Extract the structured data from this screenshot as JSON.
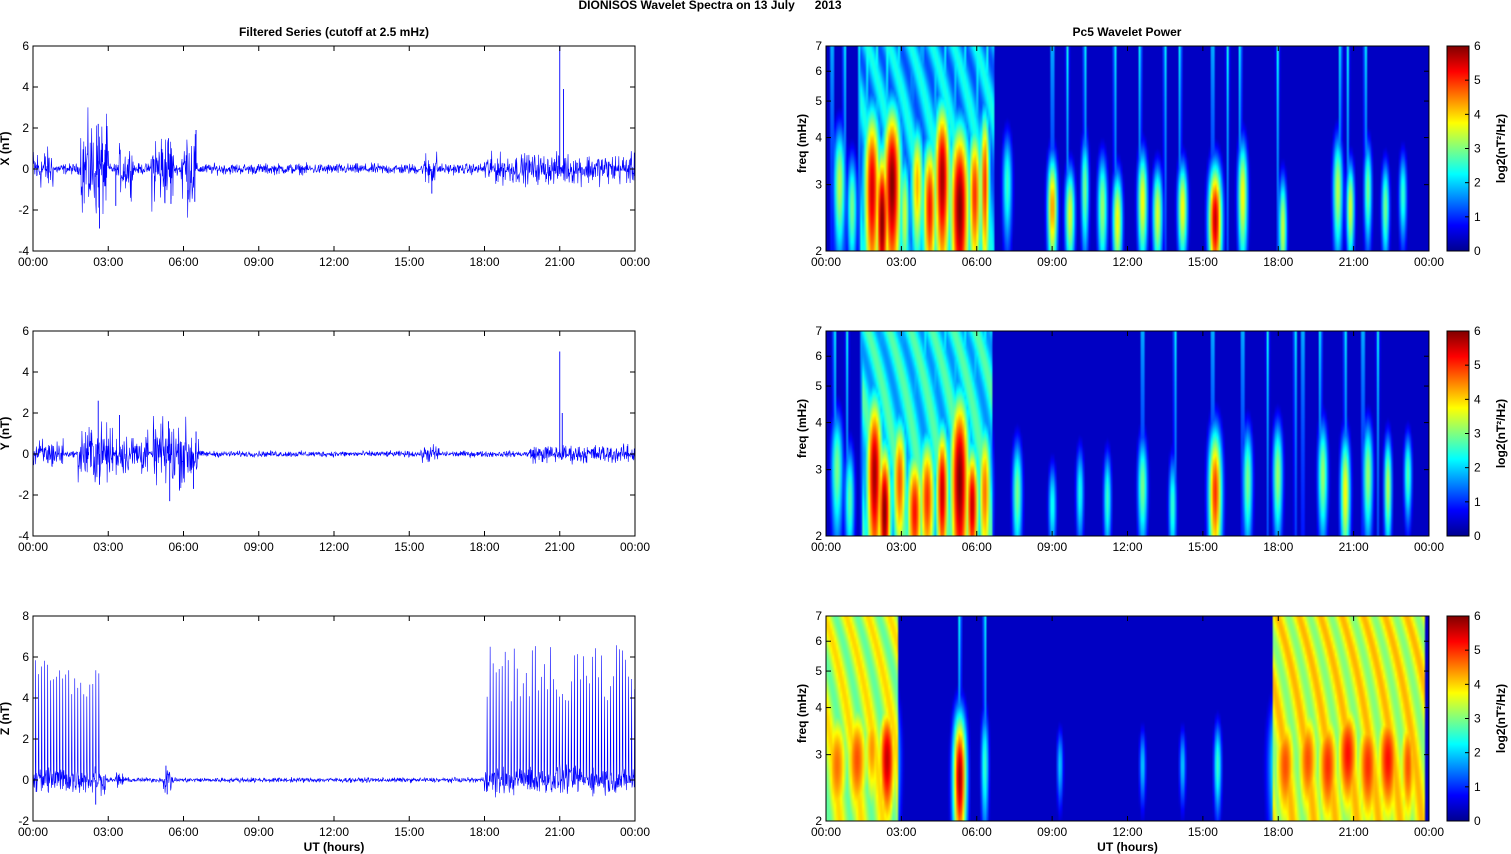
{
  "figure": {
    "title": "DIONISOS Wavelet Spectra on 13 July      2013",
    "left_title": "Filtered Series (cutoff at 2.5 mHz)",
    "right_title": "Pc5 Wavelet Power",
    "xlabel": "UT (hours)",
    "colorbar_label": "log2(nT²/Hz)",
    "colorbar_ticks": [
      "0",
      "1",
      "2",
      "3",
      "4",
      "5",
      "6"
    ]
  },
  "chart_data": [
    {
      "type": "line",
      "title": "Filtered Series (cutoff at 2.5 mHz)",
      "ylabel": "X (nT)",
      "xlabel": "",
      "x_range_hours": [
        0,
        24
      ],
      "ylim": [
        -4,
        6
      ],
      "ytick_labels": [
        "-4",
        "-2",
        "0",
        "2",
        "4",
        "6"
      ],
      "xtick_labels": [
        "00:00",
        "03:00",
        "06:00",
        "09:00",
        "12:00",
        "15:00",
        "18:00",
        "21:00",
        "00:00"
      ],
      "color": "#0000ff",
      "baseline_noise_nT": 0.18,
      "bursts": [
        {
          "start_h": 0.0,
          "end_h": 0.8,
          "amp": 0.7
        },
        {
          "start_h": 1.9,
          "end_h": 3.0,
          "amp": 1.6
        },
        {
          "start_h": 3.4,
          "end_h": 4.0,
          "amp": 0.8
        },
        {
          "start_h": 4.7,
          "end_h": 5.6,
          "amp": 1.3
        },
        {
          "start_h": 5.9,
          "end_h": 6.5,
          "amp": 1.4
        },
        {
          "start_h": 15.6,
          "end_h": 16.1,
          "amp": 0.6
        },
        {
          "start_h": 18.0,
          "end_h": 24.0,
          "amp": 0.5
        }
      ],
      "spikes": [
        {
          "x": 2.6,
          "y": 2.2
        },
        {
          "x": 2.65,
          "y": -2.9
        },
        {
          "x": 3.3,
          "y": -1.8
        },
        {
          "x": 5.4,
          "y": 1.5
        },
        {
          "x": 5.5,
          "y": -1.7
        },
        {
          "x": 6.5,
          "y": 1.9
        },
        {
          "x": 6.45,
          "y": -1.6
        },
        {
          "x": 15.9,
          "y": -1.2
        },
        {
          "x": 21.0,
          "y": 6.0
        },
        {
          "x": 21.15,
          "y": 3.9
        }
      ]
    },
    {
      "type": "line",
      "title": "",
      "ylabel": "Y (nT)",
      "xlabel": "",
      "x_range_hours": [
        0,
        24
      ],
      "ylim": [
        -4,
        6
      ],
      "ytick_labels": [
        "-4",
        "-2",
        "0",
        "2",
        "4",
        "6"
      ],
      "xtick_labels": [
        "00:00",
        "03:00",
        "06:00",
        "09:00",
        "12:00",
        "15:00",
        "18:00",
        "21:00",
        "00:00"
      ],
      "color": "#0000ff",
      "baseline_noise_nT": 0.1,
      "bursts": [
        {
          "start_h": 0.0,
          "end_h": 1.2,
          "amp": 0.5
        },
        {
          "start_h": 1.8,
          "end_h": 3.2,
          "amp": 1.0
        },
        {
          "start_h": 3.3,
          "end_h": 4.6,
          "amp": 0.7
        },
        {
          "start_h": 4.8,
          "end_h": 6.6,
          "amp": 1.1
        },
        {
          "start_h": 15.5,
          "end_h": 16.2,
          "amp": 0.3
        },
        {
          "start_h": 19.8,
          "end_h": 20.8,
          "amp": 0.3
        },
        {
          "start_h": 20.8,
          "end_h": 24.0,
          "amp": 0.3
        }
      ],
      "spikes": [
        {
          "x": 2.6,
          "y": 2.6
        },
        {
          "x": 2.65,
          "y": -1.5
        },
        {
          "x": 3.45,
          "y": 1.9
        },
        {
          "x": 5.4,
          "y": 1.6
        },
        {
          "x": 5.45,
          "y": -2.3
        },
        {
          "x": 6.4,
          "y": -1.7
        },
        {
          "x": 6.5,
          "y": 1.1
        },
        {
          "x": 21.0,
          "y": 5.0
        },
        {
          "x": 21.1,
          "y": 2.0
        }
      ]
    },
    {
      "type": "line",
      "title": "",
      "ylabel": "Z (nT)",
      "xlabel": "UT (hours)",
      "x_range_hours": [
        0,
        24
      ],
      "ylim": [
        -2,
        8
      ],
      "ytick_labels": [
        "-2",
        "0",
        "2",
        "4",
        "6",
        "8"
      ],
      "xtick_labels": [
        "00:00",
        "03:00",
        "06:00",
        "09:00",
        "12:00",
        "15:00",
        "18:00",
        "21:00",
        "00:00"
      ],
      "color": "#0000ff",
      "baseline_noise_nT": 0.08,
      "periodic_spikes": [
        {
          "start_h": 0.1,
          "end_h": 2.7,
          "period_h": 0.12,
          "amp_min": 4.0,
          "amp_max": 6.0
        },
        {
          "start_h": 18.1,
          "end_h": 24.0,
          "period_h": 0.12,
          "amp_min": 3.8,
          "amp_max": 6.6
        }
      ],
      "bursts": [
        {
          "start_h": 0.0,
          "end_h": 2.9,
          "amp": 0.45
        },
        {
          "start_h": 3.3,
          "end_h": 3.6,
          "amp": 0.3
        },
        {
          "start_h": 5.2,
          "end_h": 5.6,
          "amp": 0.5
        },
        {
          "start_h": 18.0,
          "end_h": 24.0,
          "amp": 0.45
        }
      ],
      "spikes": [
        {
          "x": 2.5,
          "y": -1.2
        },
        {
          "x": 5.3,
          "y": 0.7
        },
        {
          "x": 5.35,
          "y": -0.7
        }
      ]
    },
    {
      "type": "heatmap",
      "title": "Pc5 Wavelet Power",
      "ylabel": "freq (mHz)",
      "xlabel": "",
      "x_range_hours": [
        0,
        24
      ],
      "y_scale": "log",
      "ylim_mHz": [
        2,
        7
      ],
      "ytick_labels": [
        "2",
        "3",
        "4",
        "5",
        "6",
        "7"
      ],
      "xtick_labels": [
        "00:00",
        "03:00",
        "06:00",
        "09:00",
        "12:00",
        "15:00",
        "18:00",
        "21:00",
        "00:00"
      ],
      "zlim": [
        0,
        6
      ],
      "colormap": "jet",
      "bands": [
        {
          "start_h": 1.3,
          "end_h": 6.7,
          "level": 1.8
        }
      ],
      "blobs": [
        {
          "t": 0.5,
          "f": 3.0,
          "w": 0.18,
          "h": 0.9,
          "p": 3.4
        },
        {
          "t": 1.0,
          "f": 2.6,
          "w": 0.15,
          "h": 0.7,
          "p": 3.0
        },
        {
          "t": 1.8,
          "f": 2.9,
          "w": 0.25,
          "h": 1.4,
          "p": 5.5
        },
        {
          "t": 2.2,
          "f": 2.4,
          "w": 0.2,
          "h": 1.0,
          "p": 6.0
        },
        {
          "t": 2.6,
          "f": 3.0,
          "w": 0.28,
          "h": 1.4,
          "p": 6.0
        },
        {
          "t": 3.1,
          "f": 2.5,
          "w": 0.15,
          "h": 0.8,
          "p": 3.5
        },
        {
          "t": 3.6,
          "f": 3.0,
          "w": 0.2,
          "h": 1.0,
          "p": 4.2
        },
        {
          "t": 4.1,
          "f": 2.6,
          "w": 0.22,
          "h": 1.0,
          "p": 5.2
        },
        {
          "t": 4.6,
          "f": 3.1,
          "w": 0.25,
          "h": 1.4,
          "p": 5.8
        },
        {
          "t": 5.3,
          "f": 2.6,
          "w": 0.3,
          "h": 1.3,
          "p": 6.0
        },
        {
          "t": 5.9,
          "f": 2.8,
          "w": 0.2,
          "h": 1.1,
          "p": 5.0
        },
        {
          "t": 6.3,
          "f": 3.0,
          "w": 0.15,
          "h": 1.3,
          "p": 5.0
        },
        {
          "t": 7.2,
          "f": 3.0,
          "w": 0.15,
          "h": 0.8,
          "p": 2.6
        },
        {
          "t": 9.0,
          "f": 2.6,
          "w": 0.15,
          "h": 0.7,
          "p": 4.4
        },
        {
          "t": 9.7,
          "f": 2.5,
          "w": 0.15,
          "h": 0.6,
          "p": 3.6
        },
        {
          "t": 10.3,
          "f": 2.9,
          "w": 0.12,
          "h": 0.8,
          "p": 3.0
        },
        {
          "t": 11.0,
          "f": 2.6,
          "w": 0.15,
          "h": 0.7,
          "p": 3.2
        },
        {
          "t": 11.6,
          "f": 2.4,
          "w": 0.15,
          "h": 0.6,
          "p": 3.8
        },
        {
          "t": 12.6,
          "f": 2.7,
          "w": 0.15,
          "h": 0.7,
          "p": 3.8
        },
        {
          "t": 13.2,
          "f": 2.5,
          "w": 0.15,
          "h": 0.6,
          "p": 3.6
        },
        {
          "t": 14.2,
          "f": 2.6,
          "w": 0.15,
          "h": 0.6,
          "p": 3.8
        },
        {
          "t": 15.5,
          "f": 2.4,
          "w": 0.2,
          "h": 0.7,
          "p": 5.6
        },
        {
          "t": 16.6,
          "f": 2.8,
          "w": 0.15,
          "h": 0.8,
          "p": 3.8
        },
        {
          "t": 18.2,
          "f": 2.3,
          "w": 0.12,
          "h": 0.6,
          "p": 3.5
        },
        {
          "t": 20.4,
          "f": 2.9,
          "w": 0.15,
          "h": 0.8,
          "p": 3.4
        },
        {
          "t": 20.9,
          "f": 2.6,
          "w": 0.12,
          "h": 0.6,
          "p": 3.6
        },
        {
          "t": 21.6,
          "f": 2.9,
          "w": 0.12,
          "h": 0.7,
          "p": 3.0
        },
        {
          "t": 22.3,
          "f": 2.6,
          "w": 0.12,
          "h": 0.6,
          "p": 3.0
        },
        {
          "t": 23.0,
          "f": 2.8,
          "w": 0.12,
          "h": 0.6,
          "p": 2.6
        }
      ],
      "streaks": [
        0.2,
        0.7,
        1.3,
        1.6,
        2.0,
        2.4,
        2.9,
        3.4,
        3.8,
        4.3,
        4.7,
        5.1,
        5.5,
        6.0,
        6.4,
        9.0,
        9.6,
        10.3,
        11.5,
        12.5,
        13.5,
        14.1,
        15.4,
        16.0,
        16.5,
        18.0,
        20.5,
        20.8,
        21.5
      ]
    },
    {
      "type": "heatmap",
      "title": "",
      "ylabel": "freq (mHz)",
      "xlabel": "",
      "x_range_hours": [
        0,
        24
      ],
      "y_scale": "log",
      "ylim_mHz": [
        2,
        7
      ],
      "ytick_labels": [
        "2",
        "3",
        "4",
        "5",
        "6",
        "7"
      ],
      "xtick_labels": [
        "00:00",
        "03:00",
        "06:00",
        "09:00",
        "12:00",
        "15:00",
        "18:00",
        "21:00",
        "00:00"
      ],
      "zlim": [
        0,
        6
      ],
      "colormap": "jet",
      "bands": [
        {
          "start_h": 1.4,
          "end_h": 6.6,
          "level": 2.2
        }
      ],
      "blobs": [
        {
          "t": 0.4,
          "f": 3.0,
          "w": 0.18,
          "h": 0.9,
          "p": 3.0
        },
        {
          "t": 0.9,
          "f": 2.5,
          "w": 0.15,
          "h": 0.7,
          "p": 2.8
        },
        {
          "t": 1.9,
          "f": 2.9,
          "w": 0.25,
          "h": 1.4,
          "p": 5.8
        },
        {
          "t": 2.3,
          "f": 2.3,
          "w": 0.2,
          "h": 0.9,
          "p": 6.0
        },
        {
          "t": 2.9,
          "f": 2.8,
          "w": 0.22,
          "h": 1.0,
          "p": 4.8
        },
        {
          "t": 3.5,
          "f": 2.3,
          "w": 0.25,
          "h": 0.8,
          "p": 5.2
        },
        {
          "t": 4.0,
          "f": 2.5,
          "w": 0.25,
          "h": 0.9,
          "p": 5.0
        },
        {
          "t": 4.6,
          "f": 2.6,
          "w": 0.2,
          "h": 1.0,
          "p": 5.6
        },
        {
          "t": 5.3,
          "f": 2.8,
          "w": 0.3,
          "h": 1.5,
          "p": 6.0
        },
        {
          "t": 5.8,
          "f": 2.4,
          "w": 0.2,
          "h": 0.8,
          "p": 5.6
        },
        {
          "t": 6.3,
          "f": 2.6,
          "w": 0.2,
          "h": 1.0,
          "p": 4.6
        },
        {
          "t": 7.6,
          "f": 2.6,
          "w": 0.15,
          "h": 0.7,
          "p": 3.0
        },
        {
          "t": 9.0,
          "f": 2.4,
          "w": 0.12,
          "h": 0.5,
          "p": 2.4
        },
        {
          "t": 10.1,
          "f": 2.6,
          "w": 0.12,
          "h": 0.6,
          "p": 2.4
        },
        {
          "t": 11.2,
          "f": 2.5,
          "w": 0.12,
          "h": 0.6,
          "p": 2.6
        },
        {
          "t": 12.6,
          "f": 2.7,
          "w": 0.15,
          "h": 0.7,
          "p": 3.0
        },
        {
          "t": 13.8,
          "f": 2.4,
          "w": 0.12,
          "h": 0.6,
          "p": 2.6
        },
        {
          "t": 15.5,
          "f": 2.6,
          "w": 0.2,
          "h": 0.9,
          "p": 5.0
        },
        {
          "t": 16.8,
          "f": 2.8,
          "w": 0.15,
          "h": 0.8,
          "p": 3.0
        },
        {
          "t": 18.0,
          "f": 2.9,
          "w": 0.15,
          "h": 0.8,
          "p": 3.2
        },
        {
          "t": 19.8,
          "f": 2.9,
          "w": 0.15,
          "h": 0.8,
          "p": 3.2
        },
        {
          "t": 20.7,
          "f": 2.6,
          "w": 0.15,
          "h": 0.8,
          "p": 3.8
        },
        {
          "t": 21.6,
          "f": 2.9,
          "w": 0.15,
          "h": 0.8,
          "p": 3.2
        },
        {
          "t": 22.4,
          "f": 2.7,
          "w": 0.12,
          "h": 0.7,
          "p": 3.4
        },
        {
          "t": 23.2,
          "f": 2.9,
          "w": 0.12,
          "h": 0.6,
          "p": 2.8
        }
      ],
      "streaks": [
        0.3,
        0.8,
        1.4,
        1.8,
        2.2,
        2.6,
        3.0,
        3.5,
        3.9,
        4.3,
        4.7,
        5.1,
        5.5,
        5.9,
        6.3,
        12.6,
        13.9,
        15.4,
        16.6,
        17.6,
        18.7,
        19.0,
        19.7,
        20.7,
        21.4,
        22.0
      ]
    },
    {
      "type": "heatmap",
      "title": "",
      "ylabel": "freq (mHz)",
      "xlabel": "UT (hours)",
      "x_range_hours": [
        0,
        24
      ],
      "y_scale": "log",
      "ylim_mHz": [
        2,
        7
      ],
      "ytick_labels": [
        "2",
        "3",
        "4",
        "5",
        "6",
        "7"
      ],
      "xtick_labels": [
        "00:00",
        "03:00",
        "06:00",
        "09:00",
        "12:00",
        "15:00",
        "18:00",
        "21:00",
        "00:00"
      ],
      "zlim": [
        0,
        6
      ],
      "colormap": "jet",
      "bands": [
        {
          "start_h": 0.0,
          "end_h": 2.8,
          "level": 3.4
        },
        {
          "start_h": 17.8,
          "end_h": 23.9,
          "level": 3.6
        }
      ],
      "blobs": [
        {
          "t": 0.4,
          "f": 2.8,
          "w": 0.4,
          "h": 1.0,
          "p": 4.6
        },
        {
          "t": 1.2,
          "f": 2.9,
          "w": 0.4,
          "h": 1.0,
          "p": 4.8
        },
        {
          "t": 1.8,
          "f": 3.1,
          "w": 0.3,
          "h": 1.0,
          "p": 4.4
        },
        {
          "t": 2.4,
          "f": 2.9,
          "w": 0.3,
          "h": 1.0,
          "p": 5.6
        },
        {
          "t": 5.3,
          "f": 2.6,
          "w": 0.2,
          "h": 0.9,
          "p": 5.8
        },
        {
          "t": 6.3,
          "f": 2.8,
          "w": 0.12,
          "h": 0.8,
          "p": 2.6
        },
        {
          "t": 9.3,
          "f": 2.8,
          "w": 0.1,
          "h": 0.5,
          "p": 2.0
        },
        {
          "t": 12.6,
          "f": 2.8,
          "w": 0.1,
          "h": 0.5,
          "p": 2.0
        },
        {
          "t": 14.2,
          "f": 2.8,
          "w": 0.1,
          "h": 0.5,
          "p": 2.0
        },
        {
          "t": 15.6,
          "f": 2.8,
          "w": 0.12,
          "h": 0.6,
          "p": 2.6
        },
        {
          "t": 18.3,
          "f": 2.8,
          "w": 0.4,
          "h": 1.0,
          "p": 4.8
        },
        {
          "t": 19.2,
          "f": 2.9,
          "w": 0.4,
          "h": 1.0,
          "p": 4.8
        },
        {
          "t": 20.0,
          "f": 2.8,
          "w": 0.4,
          "h": 1.0,
          "p": 5.0
        },
        {
          "t": 20.8,
          "f": 3.0,
          "w": 0.4,
          "h": 1.0,
          "p": 5.2
        },
        {
          "t": 21.6,
          "f": 2.8,
          "w": 0.4,
          "h": 1.0,
          "p": 5.0
        },
        {
          "t": 22.4,
          "f": 2.9,
          "w": 0.4,
          "h": 1.0,
          "p": 5.2
        },
        {
          "t": 23.2,
          "f": 2.8,
          "w": 0.3,
          "h": 1.0,
          "p": 4.8
        }
      ],
      "streaks": [
        0.1,
        0.5,
        0.9,
        1.3,
        1.7,
        2.1,
        2.5,
        5.3,
        6.3,
        17.9,
        18.3,
        18.7,
        19.1,
        19.5,
        19.9,
        20.3,
        20.7,
        21.1,
        21.5,
        21.9,
        22.3,
        22.7,
        23.1,
        23.5
      ]
    }
  ]
}
